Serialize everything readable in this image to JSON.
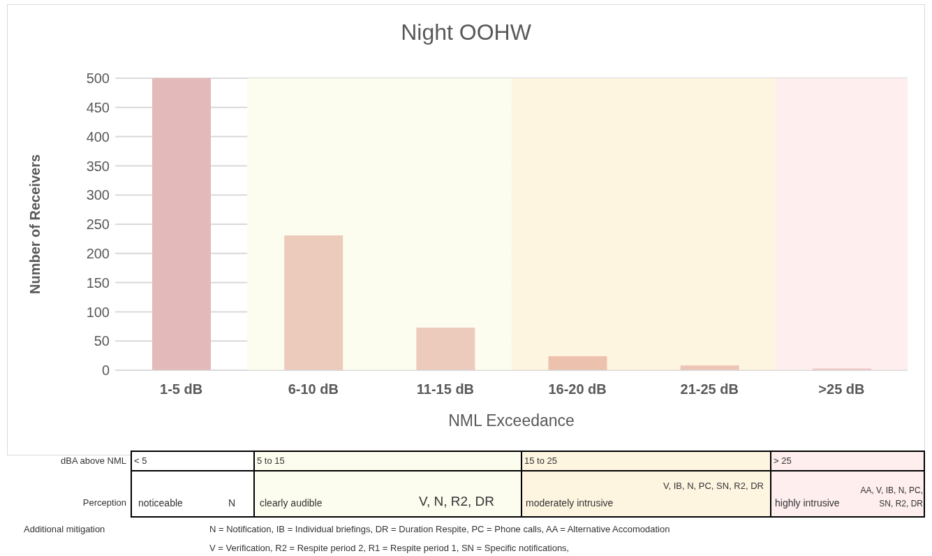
{
  "chart_data": {
    "type": "bar",
    "title": "Night OOHW",
    "xlabel": "NML Exceedance",
    "ylabel": "Number of Receivers",
    "categories": [
      "1-5 dB",
      "6-10 dB",
      "11-15 dB",
      "16-20 dB",
      "21-25 dB",
      ">25 dB"
    ],
    "values": [
      500,
      231,
      73,
      24,
      8,
      3
    ],
    "colors": [
      "#e4b9b9",
      "#eccabc",
      "#eccabc",
      "#ecc1ae",
      "#ecc5b5",
      "#f2c6c6"
    ],
    "ylim": [
      0,
      500
    ],
    "yticks": [
      0,
      50,
      100,
      150,
      200,
      250,
      300,
      350,
      400,
      450,
      500
    ],
    "grid": "y",
    "legend": false,
    "bands": [
      {
        "axis": "x",
        "from": "6-10 dB",
        "to": "11-15 dB",
        "color": "#fdfdef"
      },
      {
        "axis": "x",
        "from": "16-20 dB",
        "to": "21-25 dB",
        "color": "#fef5e1"
      },
      {
        "axis": "x",
        "from": ">25 dB",
        "to": ">25 dB",
        "color": "#feeeee"
      }
    ],
    "annotations": [
      "dBA above NML",
      "< 5",
      "5 to 15",
      "15 to 25",
      "> 25",
      "Perception",
      "noticeable",
      "N",
      "clearly audible",
      "V, N, R2, DR",
      "moderately intrusive",
      "V, IB, N, PC, SN, R2, DR",
      "highly intrusive",
      "AA, V, IB, N, PC, SN, R2, DR",
      "Additional mitigation",
      "N = Notification,  IB = Individual briefings,  DR = Duration Respite,  PC = Phone calls,  AA = Alternative Accomodation",
      "V = Verification,  R2 = Respite period 2,  R1 = Respite period 1,  SN = Specific notifications,"
    ]
  }
}
